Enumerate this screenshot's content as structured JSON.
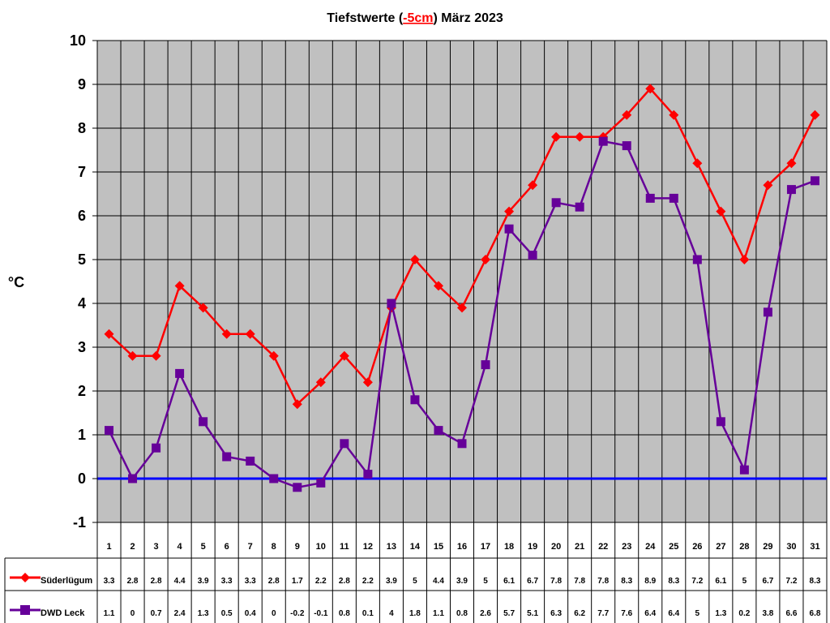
{
  "chart_data": {
    "type": "line",
    "title_prefix": "Tiefstwerte (",
    "title_highlight": "-5cm",
    "title_suffix": ") März 2023",
    "ylabel": "°C",
    "ylim": [
      -1,
      10
    ],
    "yticks": [
      -1,
      0,
      1,
      2,
      3,
      4,
      5,
      6,
      7,
      8,
      9,
      10
    ],
    "grid": true,
    "zero_line": true,
    "x": [
      1,
      2,
      3,
      4,
      5,
      6,
      7,
      8,
      9,
      10,
      11,
      12,
      13,
      14,
      15,
      16,
      17,
      18,
      19,
      20,
      21,
      22,
      23,
      24,
      25,
      26,
      27,
      28,
      29,
      30,
      31
    ],
    "series": [
      {
        "name": "Süderlügum",
        "color": "#ff0000",
        "marker": "diamond",
        "values": [
          3.3,
          2.8,
          2.8,
          4.4,
          3.9,
          3.3,
          3.3,
          2.8,
          1.7,
          2.2,
          2.8,
          2.2,
          3.9,
          5,
          4.4,
          3.9,
          5,
          6.1,
          6.7,
          7.8,
          7.8,
          7.8,
          8.3,
          8.9,
          8.3,
          7.2,
          6.1,
          5,
          6.7,
          7.2,
          8.3
        ]
      },
      {
        "name": "DWD Leck",
        "color": "#660099",
        "marker": "square",
        "values": [
          1.1,
          0,
          0.7,
          2.4,
          1.3,
          0.5,
          0.4,
          0,
          -0.2,
          -0.1,
          0.8,
          0.1,
          4,
          1.8,
          1.1,
          0.8,
          2.6,
          5.7,
          5.1,
          6.3,
          6.2,
          7.7,
          7.6,
          6.4,
          6.4,
          5,
          1.3,
          0.2,
          3.8,
          6.6,
          6.8
        ]
      }
    ]
  },
  "colors": {
    "plot_background": "#c0c0c0",
    "zero_line": "#0000ff"
  }
}
